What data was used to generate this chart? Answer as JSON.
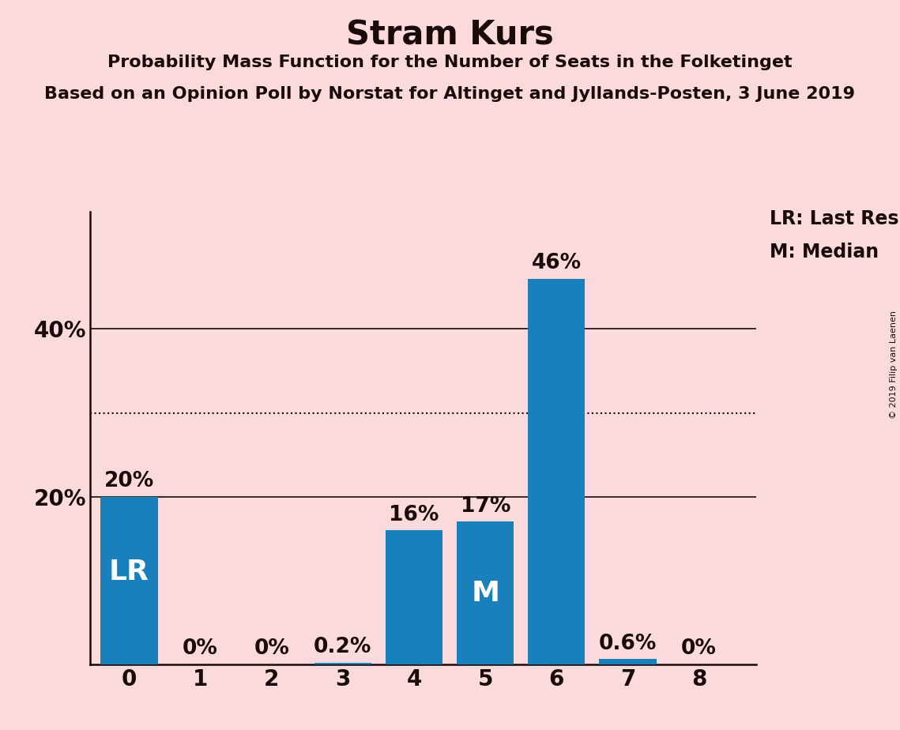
{
  "title": "Stram Kurs",
  "subtitle1": "Probability Mass Function for the Number of Seats in the Folketinget",
  "subtitle2": "Based on an Opinion Poll by Norstat for Altinget and Jyllands-Posten, 3 June 2019",
  "categories": [
    0,
    1,
    2,
    3,
    4,
    5,
    6,
    7,
    8
  ],
  "values": [
    0.2,
    0.0,
    0.0,
    0.002,
    0.16,
    0.17,
    0.46,
    0.006,
    0.0
  ],
  "bar_labels": [
    "20%",
    "0%",
    "0%",
    "0.2%",
    "16%",
    "17%",
    "46%",
    "0.6%",
    "0%"
  ],
  "bar_color": "#1a80bb",
  "background_color": "#fadadd",
  "label_color": "#1a0a0a",
  "lr_bar": 0,
  "median_bar": 5,
  "legend_lr": "LR: Last Result",
  "legend_m": "M: Median",
  "solid_line_y": [
    0.2,
    0.4
  ],
  "dotted_line_y": 0.3,
  "ytick_positions": [
    0.2,
    0.4
  ],
  "ytick_labels": [
    "20%",
    "40%"
  ],
  "ylim": [
    0,
    0.54
  ],
  "xlim": [
    -0.55,
    8.8
  ],
  "copyright_text": "© 2019 Filip van Laenen",
  "title_fontsize": 30,
  "subtitle_fontsize": 16,
  "tick_fontsize": 20,
  "label_fontsize": 20,
  "lr_m_fontsize": 26,
  "legend_fontsize": 17,
  "bar_label_fontsize": 19
}
